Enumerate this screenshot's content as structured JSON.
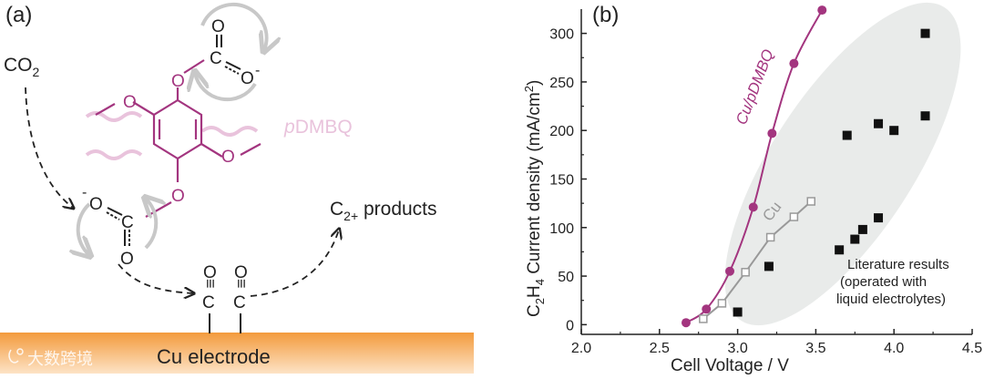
{
  "colors": {
    "magenta": "#a3357f",
    "pink_light": "#e9c3dc",
    "gray_marker": "#999999",
    "gray_arrow": "#c8c8c8",
    "electrode_orange": "#f39a3c",
    "ellipse_fill": "#e9ebea",
    "text_dark": "#222222"
  },
  "panel_a": {
    "label": "(a)",
    "co2_label": "CO",
    "co2_sub": "2",
    "products_label": "C",
    "products_sub": "2+",
    "products_rest": " products",
    "polymer_label_italic": "p",
    "polymer_label_rest": "DMBQ",
    "electrode_label": "Cu electrode",
    "watermark": "大数跨境",
    "atoms": {
      "c": "C",
      "o": "O",
      "minus": "-",
      "triple": "≡"
    }
  },
  "panel_b": {
    "label": "(b)",
    "ylabel_main": "C",
    "ylabel_sub1": "2",
    "ylabel_mid": "H",
    "ylabel_sub2": "4",
    "ylabel_rest": " Current density (mA/cm",
    "ylabel_sup": "2",
    "ylabel_end": ")",
    "xlabel": "Cell Voltage / V",
    "series_label_pdmbq": "Cu/pDMBQ",
    "series_label_cu": "Cu",
    "literature_note": [
      "Literature results",
      "(operated with",
      "liquid electrolytes)"
    ]
  },
  "chart_data": {
    "type": "scatter",
    "title": "",
    "xlabel": "Cell Voltage / V",
    "ylabel": "C2H4 Current density (mA/cm2)",
    "xlim": [
      2.0,
      4.5
    ],
    "ylim": [
      -10,
      325
    ],
    "x_ticks": [
      "2.0",
      "2.5",
      "3.0",
      "3.5",
      "4.0",
      "4.5"
    ],
    "y_ticks": [
      "0",
      "50",
      "100",
      "150",
      "200",
      "250",
      "300"
    ],
    "x_tick_values": [
      2.0,
      2.5,
      3.0,
      3.5,
      4.0,
      4.5
    ],
    "y_tick_values": [
      0,
      50,
      100,
      150,
      200,
      250,
      300
    ],
    "series": [
      {
        "name": "Cu/pDMBQ",
        "marker": "filled-circle",
        "line": true,
        "x": [
          2.67,
          2.8,
          2.95,
          3.1,
          3.22,
          3.36,
          3.54
        ],
        "y": [
          2,
          16,
          55,
          121,
          197,
          269,
          324
        ]
      },
      {
        "name": "Cu",
        "marker": "open-square",
        "line": true,
        "x": [
          2.78,
          2.9,
          3.05,
          3.21,
          3.36,
          3.47
        ],
        "y": [
          6,
          22,
          54,
          90,
          111,
          127
        ]
      },
      {
        "name": "Literature results",
        "marker": "filled-square",
        "line": false,
        "x": [
          3.0,
          3.2,
          3.65,
          3.75,
          3.8,
          3.9,
          3.7,
          3.9,
          4.0,
          4.2,
          4.2
        ],
        "y": [
          13,
          60,
          77,
          88,
          98,
          110,
          195,
          207,
          200,
          215,
          300
        ]
      }
    ]
  }
}
